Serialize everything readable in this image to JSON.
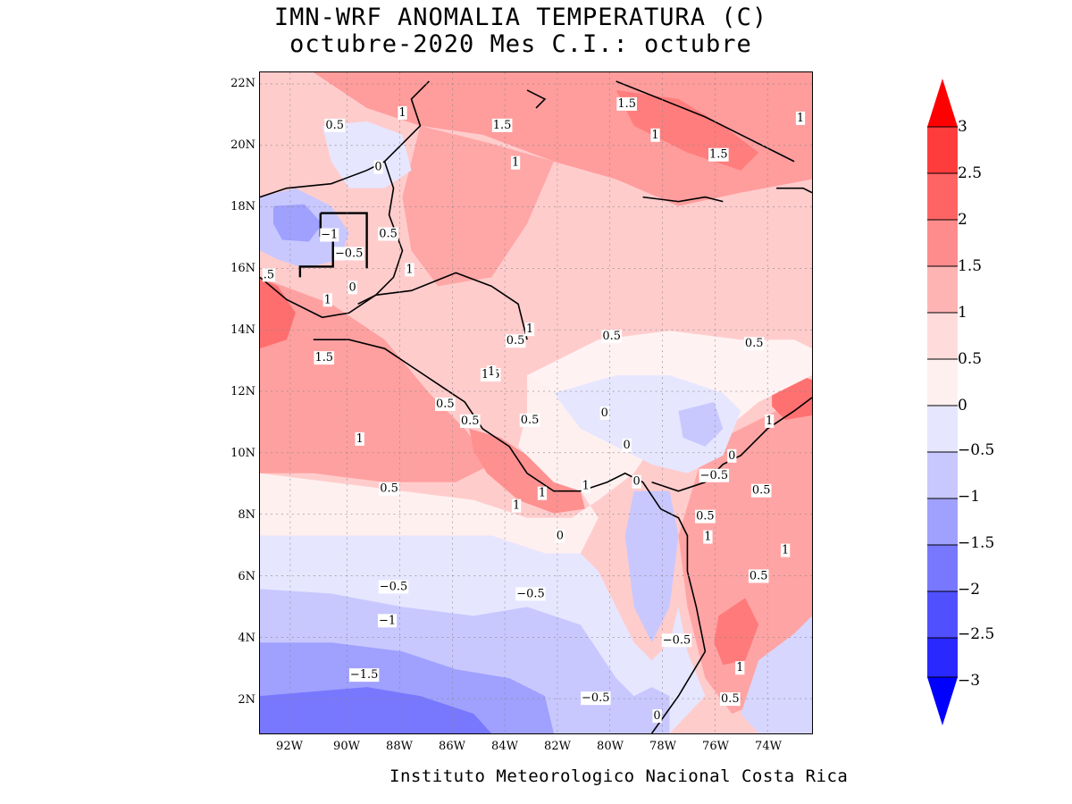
{
  "header": {
    "title_line1": "IMN-WRF  ANOMALIA TEMPERATURA (C)",
    "title_line2": "octubre-2020 Mes C.I.: octubre"
  },
  "axes": {
    "lat_ticks": [
      "22N",
      "20N",
      "18N",
      "16N",
      "14N",
      "12N",
      "10N",
      "8N",
      "6N",
      "4N",
      "2N"
    ],
    "lon_ticks": [
      "92W",
      "90W",
      "88W",
      "86W",
      "84W",
      "82W",
      "80W",
      "78W",
      "76W",
      "74W"
    ]
  },
  "colorbar": {
    "labels": [
      "3",
      "2.5",
      "2",
      "1.5",
      "1",
      "0.5",
      "0",
      "−0.5",
      "−1",
      "−1.5",
      "−2",
      "−2.5",
      "−3"
    ],
    "colors": [
      "#ff0000",
      "#ff3c3c",
      "#ff6464",
      "#ff8c8c",
      "#ffb4b4",
      "#ffdcdc",
      "#fff0f0",
      "#e6e6ff",
      "#c8c8ff",
      "#a0a0ff",
      "#7878ff",
      "#5050ff",
      "#2828ff",
      "#0000ff"
    ]
  },
  "contour_labels": [
    {
      "text": "0.5"
    },
    {
      "text": "1"
    },
    {
      "text": "1.5"
    },
    {
      "text": "1.5"
    },
    {
      "text": "1"
    },
    {
      "text": "1.5"
    },
    {
      "text": "1"
    },
    {
      "text": "0"
    },
    {
      "text": "1"
    },
    {
      "text": "−1"
    },
    {
      "text": "0.5"
    },
    {
      "text": "−0.5"
    },
    {
      "text": "1"
    },
    {
      "text": "0"
    },
    {
      "text": "1.5"
    },
    {
      "text": "1"
    },
    {
      "text": "0.5"
    },
    {
      "text": "0.5"
    },
    {
      "text": "1"
    },
    {
      "text": "0.5"
    },
    {
      "text": "1.5"
    },
    {
      "text": "1"
    },
    {
      "text": "0.5"
    },
    {
      "text": "0.5"
    },
    {
      "text": "0.5"
    },
    {
      "text": "0"
    },
    {
      "text": "1"
    },
    {
      "text": "1"
    },
    {
      "text": "0"
    },
    {
      "text": "0.5"
    },
    {
      "text": "1"
    },
    {
      "text": "1"
    },
    {
      "text": "1"
    },
    {
      "text": "0"
    },
    {
      "text": "−0.5"
    },
    {
      "text": "0"
    },
    {
      "text": "0.5"
    },
    {
      "text": "0.5"
    },
    {
      "text": "1"
    },
    {
      "text": "0"
    },
    {
      "text": "1"
    },
    {
      "text": "0.5"
    },
    {
      "text": "−0.5"
    },
    {
      "text": "−0.5"
    },
    {
      "text": "−1"
    },
    {
      "text": "−0.5"
    },
    {
      "text": "1"
    },
    {
      "text": "−1.5"
    },
    {
      "text": "−0.5"
    },
    {
      "text": "0.5"
    },
    {
      "text": "0"
    },
    {
      "text": ".5"
    }
  ],
  "footer": {
    "credit": "Instituto Meteorologico Nacional Costa Rica"
  }
}
